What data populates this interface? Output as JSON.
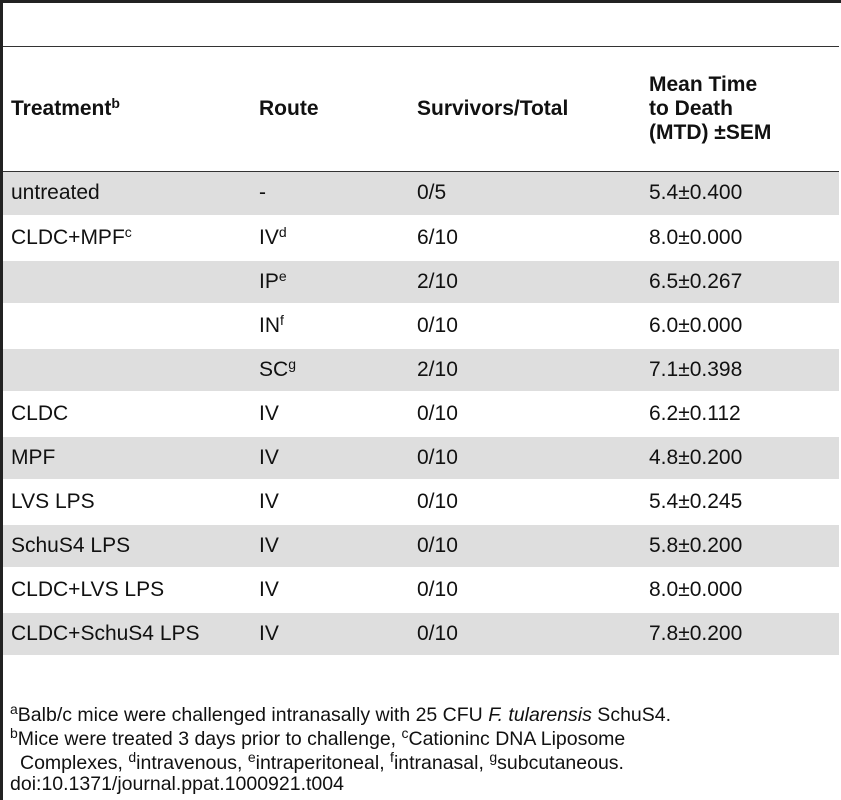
{
  "table": {
    "headers": {
      "treatment": "Treatment",
      "treatment_sup": "b",
      "route": "Route",
      "survivors": "Survivors/Total",
      "mtd_line1": "Mean Time",
      "mtd_line2": "to Death",
      "mtd_line3": "(MTD) ±SEM"
    },
    "rows": [
      {
        "treatment": "untreated",
        "t_sup": "",
        "route": "-",
        "r_sup": "",
        "survivors": "0/5",
        "mtd": "5.4±0.400",
        "shaded": true
      },
      {
        "treatment": "CLDC+MPF",
        "t_sup": "c",
        "route": "IV",
        "r_sup": "d",
        "survivors": "6/10",
        "mtd": "8.0±0.000",
        "shaded": false
      },
      {
        "treatment": "",
        "t_sup": "",
        "route": "IP",
        "r_sup": "e",
        "survivors": "2/10",
        "mtd": "6.5±0.267",
        "shaded": true
      },
      {
        "treatment": "",
        "t_sup": "",
        "route": "IN",
        "r_sup": "f",
        "survivors": "0/10",
        "mtd": "6.0±0.000",
        "shaded": false
      },
      {
        "treatment": "",
        "t_sup": "",
        "route": "SC",
        "r_sup": "g",
        "survivors": "2/10",
        "mtd": "7.1±0.398",
        "shaded": true
      },
      {
        "treatment": "CLDC",
        "t_sup": "",
        "route": "IV",
        "r_sup": "",
        "survivors": "0/10",
        "mtd": "6.2±0.112",
        "shaded": false
      },
      {
        "treatment": "MPF",
        "t_sup": "",
        "route": "IV",
        "r_sup": "",
        "survivors": "0/10",
        "mtd": "4.8±0.200",
        "shaded": true
      },
      {
        "treatment": "LVS LPS",
        "t_sup": "",
        "route": "IV",
        "r_sup": "",
        "survivors": "0/10",
        "mtd": "5.4±0.245",
        "shaded": false
      },
      {
        "treatment": "SchuS4 LPS",
        "t_sup": "",
        "route": "IV",
        "r_sup": "",
        "survivors": "0/10",
        "mtd": "5.8±0.200",
        "shaded": true
      },
      {
        "treatment": "CLDC+LVS LPS",
        "t_sup": "",
        "route": "IV",
        "r_sup": "",
        "survivors": "0/10",
        "mtd": "8.0±0.000",
        "shaded": false
      },
      {
        "treatment": "CLDC+SchuS4 LPS",
        "t_sup": "",
        "route": "IV",
        "r_sup": "",
        "survivors": "0/10",
        "mtd": "7.8±0.200",
        "shaded": true
      }
    ]
  },
  "footnotes": {
    "a_sup": "a",
    "a_text_pre": "Balb/c mice were challenged intranasally with 25 CFU ",
    "a_text_italic": "F. tularensis",
    "a_text_post": " SchuS4.",
    "b_sup": "b",
    "b_text": "Mice were treated 3 days prior to challenge, ",
    "c_sup": "c",
    "c_text": "Cationinc DNA Liposome",
    "c_text2": "Complexes, ",
    "d_sup": "d",
    "d_text": "intravenous, ",
    "e_sup": "e",
    "e_text": "intraperitoneal, ",
    "f_sup": "f",
    "f_text": "intranasal, ",
    "g_sup": "g",
    "g_text": "subcutaneous."
  },
  "doi": "doi:10.1371/journal.ppat.1000921.t004"
}
